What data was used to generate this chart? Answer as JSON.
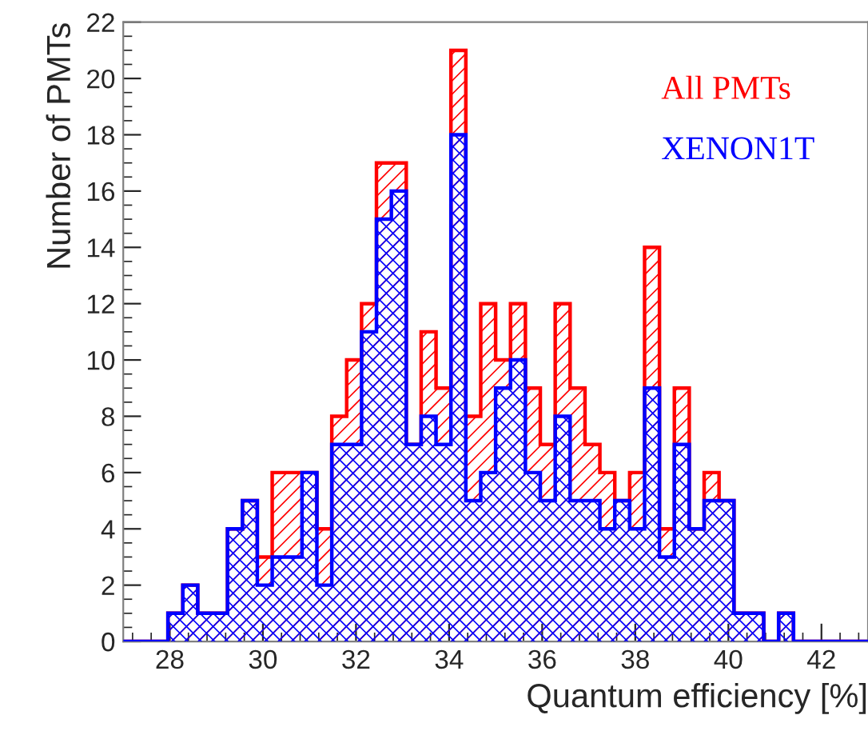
{
  "chart_data": {
    "type": "histogram",
    "xlabel": "Quantum efficiency [%]",
    "ylabel": "Number of PMTs",
    "bins": [
      27,
      27.32,
      27.64,
      27.96,
      28.28,
      28.6,
      28.92,
      29.24,
      29.56,
      29.88,
      30.2,
      30.52,
      30.84,
      31.16,
      31.48,
      31.8,
      32.12,
      32.44,
      32.76,
      33.08,
      33.4,
      33.72,
      34.04,
      34.36,
      34.68,
      35,
      35.32,
      35.64,
      35.96,
      36.28,
      36.6,
      36.92,
      37.24,
      37.56,
      37.88,
      38.2,
      38.52,
      38.84,
      39.16,
      39.48,
      39.8,
      40.12,
      40.44,
      40.76,
      41.08,
      41.4,
      41.72,
      42.04,
      42.36,
      42.68,
      43
    ],
    "series": [
      {
        "name": "All PMTs",
        "color": "#ff0000",
        "values": [
          0,
          0,
          0,
          1,
          2,
          1,
          1,
          4,
          5,
          3,
          6,
          6,
          6,
          4,
          8,
          10,
          12,
          17,
          17,
          7,
          11,
          9,
          21,
          8,
          12,
          10,
          12,
          9,
          7,
          12,
          9,
          7,
          6,
          5,
          6,
          14,
          4,
          9,
          4,
          6,
          5,
          1,
          1,
          0,
          1,
          0,
          0,
          0,
          0,
          0
        ]
      },
      {
        "name": "XENON1T",
        "color": "#0000ff",
        "values": [
          0,
          0,
          0,
          1,
          2,
          1,
          1,
          4,
          5,
          2,
          3,
          3,
          6,
          2,
          7,
          7,
          11,
          15,
          16,
          7,
          8,
          7,
          18,
          5,
          6,
          9,
          10,
          6,
          5,
          8,
          5,
          5,
          4,
          5,
          4,
          9,
          3,
          7,
          4,
          5,
          5,
          1,
          1,
          0,
          1,
          0,
          0,
          0,
          0,
          0
        ]
      }
    ],
    "xlim": [
      27,
      43
    ],
    "xticks": [
      28,
      30,
      32,
      34,
      36,
      38,
      40,
      42
    ],
    "ylim": [
      0,
      22
    ],
    "yticks": [
      0,
      2,
      4,
      6,
      8,
      10,
      12,
      14,
      16,
      18,
      20,
      22
    ],
    "grid": false,
    "legend": "top right"
  }
}
